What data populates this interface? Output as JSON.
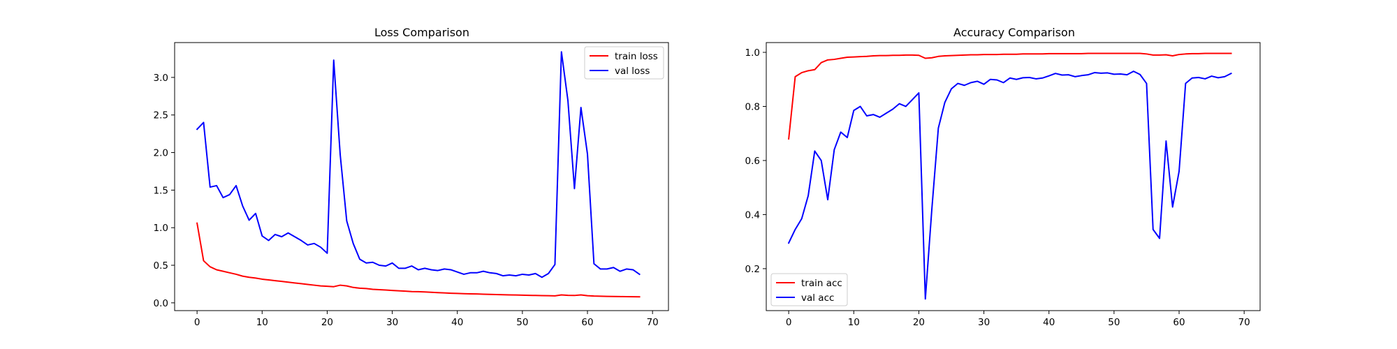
{
  "chart_data": [
    {
      "type": "line",
      "title": "Loss Comparison",
      "xlabel": "",
      "ylabel": "",
      "xlim": [
        -3.45,
        72.45
      ],
      "ylim": [
        -0.1035,
        3.4635
      ],
      "xticks": [
        0,
        10,
        20,
        30,
        40,
        50,
        60,
        70
      ],
      "yticks": [
        0.0,
        0.5,
        1.0,
        1.5,
        2.0,
        2.5,
        3.0
      ],
      "ytick_labels": [
        "0.0",
        "0.5",
        "1.0",
        "1.5",
        "2.0",
        "2.5",
        "3.0"
      ],
      "legend_position": "upper right",
      "series": [
        {
          "name": "train loss",
          "color": "#ff0000",
          "values": [
            1.06,
            0.56,
            0.48,
            0.44,
            0.42,
            0.4,
            0.38,
            0.355,
            0.34,
            0.33,
            0.315,
            0.305,
            0.295,
            0.285,
            0.275,
            0.265,
            0.255,
            0.245,
            0.235,
            0.225,
            0.22,
            0.215,
            0.235,
            0.225,
            0.205,
            0.195,
            0.19,
            0.18,
            0.175,
            0.17,
            0.165,
            0.16,
            0.155,
            0.15,
            0.148,
            0.145,
            0.14,
            0.136,
            0.132,
            0.128,
            0.125,
            0.122,
            0.12,
            0.118,
            0.115,
            0.112,
            0.11,
            0.108,
            0.106,
            0.104,
            0.102,
            0.1,
            0.098,
            0.096,
            0.095,
            0.093,
            0.105,
            0.1,
            0.098,
            0.106,
            0.095,
            0.09,
            0.088,
            0.086,
            0.085,
            0.083,
            0.082,
            0.081,
            0.08
          ]
        },
        {
          "name": "val loss",
          "color": "#0000ff",
          "values": [
            2.31,
            2.4,
            1.54,
            1.56,
            1.4,
            1.44,
            1.56,
            1.29,
            1.1,
            1.19,
            0.89,
            0.83,
            0.91,
            0.88,
            0.93,
            0.88,
            0.83,
            0.77,
            0.79,
            0.74,
            0.66,
            3.23,
            1.97,
            1.09,
            0.79,
            0.58,
            0.53,
            0.54,
            0.5,
            0.49,
            0.53,
            0.46,
            0.46,
            0.49,
            0.44,
            0.46,
            0.44,
            0.43,
            0.45,
            0.44,
            0.41,
            0.38,
            0.4,
            0.4,
            0.42,
            0.4,
            0.39,
            0.36,
            0.37,
            0.36,
            0.38,
            0.37,
            0.39,
            0.34,
            0.39,
            0.51,
            3.34,
            2.69,
            1.52,
            2.6,
            1.98,
            0.52,
            0.45,
            0.45,
            0.47,
            0.42,
            0.45,
            0.44,
            0.38
          ]
        }
      ]
    },
    {
      "type": "line",
      "title": "Accuracy Comparison",
      "xlabel": "",
      "ylabel": "",
      "xlim": [
        -3.45,
        72.45
      ],
      "ylim": [
        0.0449,
        1.0361
      ],
      "xticks": [
        0,
        10,
        20,
        30,
        40,
        50,
        60,
        70
      ],
      "yticks": [
        0.2,
        0.4,
        0.6,
        0.8,
        1.0
      ],
      "ytick_labels": [
        "0.2",
        "0.4",
        "0.6",
        "0.8",
        "1.0"
      ],
      "legend_position": "lower left",
      "series": [
        {
          "name": "train acc",
          "color": "#ff0000",
          "values": [
            0.68,
            0.91,
            0.925,
            0.932,
            0.936,
            0.962,
            0.972,
            0.974,
            0.978,
            0.982,
            0.983,
            0.984,
            0.985,
            0.987,
            0.988,
            0.988,
            0.989,
            0.989,
            0.99,
            0.99,
            0.989,
            0.978,
            0.98,
            0.985,
            0.987,
            0.988,
            0.989,
            0.99,
            0.991,
            0.991,
            0.992,
            0.992,
            0.992,
            0.993,
            0.993,
            0.993,
            0.994,
            0.994,
            0.994,
            0.994,
            0.995,
            0.995,
            0.995,
            0.995,
            0.995,
            0.995,
            0.996,
            0.996,
            0.996,
            0.996,
            0.996,
            0.996,
            0.996,
            0.996,
            0.996,
            0.994,
            0.99,
            0.99,
            0.991,
            0.987,
            0.992,
            0.994,
            0.995,
            0.995,
            0.996,
            0.996,
            0.996,
            0.996,
            0.996
          ]
        },
        {
          "name": "val acc",
          "color": "#0000ff",
          "values": [
            0.295,
            0.345,
            0.385,
            0.47,
            0.635,
            0.6,
            0.455,
            0.64,
            0.705,
            0.685,
            0.785,
            0.8,
            0.765,
            0.77,
            0.76,
            0.775,
            0.79,
            0.81,
            0.8,
            0.825,
            0.85,
            0.088,
            0.42,
            0.72,
            0.815,
            0.865,
            0.885,
            0.878,
            0.888,
            0.893,
            0.882,
            0.9,
            0.898,
            0.888,
            0.905,
            0.9,
            0.906,
            0.907,
            0.902,
            0.905,
            0.913,
            0.922,
            0.916,
            0.917,
            0.91,
            0.914,
            0.917,
            0.925,
            0.923,
            0.924,
            0.919,
            0.92,
            0.917,
            0.93,
            0.918,
            0.885,
            0.345,
            0.312,
            0.672,
            0.428,
            0.56,
            0.885,
            0.905,
            0.907,
            0.902,
            0.912,
            0.906,
            0.91,
            0.922
          ]
        }
      ]
    }
  ]
}
